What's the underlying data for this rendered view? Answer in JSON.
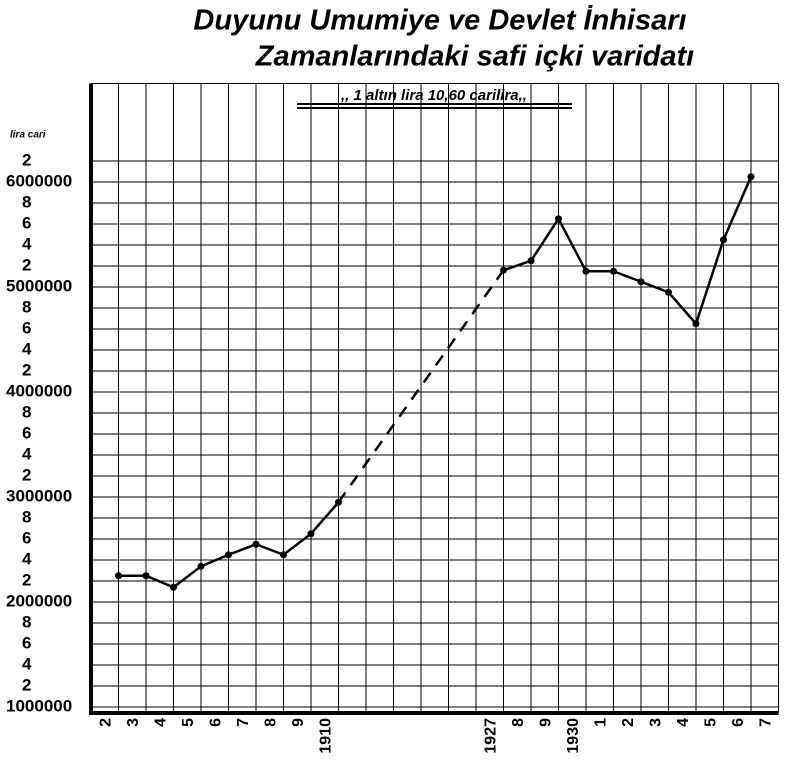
{
  "chart_data": {
    "type": "line",
    "title": [
      "Duyunu Umumiye ve Devlet İnhisarı",
      "Zamanlarındaki safi içki varidatı"
    ],
    "annotation": ",, 1 altın lira    10,60 carilira,,",
    "y_label": "lira cari",
    "categories": [
      "2",
      "3",
      "4",
      "5",
      "6",
      "7",
      "8",
      "9",
      "1910",
      null,
      null,
      null,
      null,
      null,
      "1927",
      "8",
      "9",
      "1930",
      "1",
      "2",
      "3",
      "4",
      "5",
      "6",
      "7"
    ],
    "values": [
      2250000,
      2250000,
      2140000,
      2340000,
      2450000,
      2550000,
      2450000,
      2650000,
      2950000,
      null,
      null,
      null,
      null,
      null,
      5160000,
      5250000,
      5650000,
      5150000,
      5150000,
      5050000,
      4950000,
      4650000,
      5450000,
      6050000,
      null
    ],
    "color": "#000000",
    "gaps": "dashed",
    "ylim": [
      1000000,
      6900000
    ],
    "yticks": [
      1000000,
      {
        "value": 1200000,
        "label": "2"
      },
      {
        "value": 1400000,
        "label": "4"
      },
      {
        "value": 1600000,
        "label": "6"
      },
      {
        "value": 1800000,
        "label": "8"
      },
      2000000,
      {
        "value": 2200000,
        "label": "2"
      },
      {
        "value": 2400000,
        "label": "4"
      },
      {
        "value": 2600000,
        "label": "6"
      },
      {
        "value": 2800000,
        "label": "8"
      },
      3000000,
      {
        "value": 3200000,
        "label": "2"
      },
      {
        "value": 3400000,
        "label": "4"
      },
      {
        "value": 3600000,
        "label": "6"
      },
      {
        "value": 3800000,
        "label": "8"
      },
      4000000,
      {
        "value": 4200000,
        "label": "2"
      },
      {
        "value": 4400000,
        "label": "4"
      },
      {
        "value": 4600000,
        "label": "6"
      },
      {
        "value": 4800000,
        "label": "8"
      },
      5000000,
      {
        "value": 5200000,
        "label": "2"
      },
      {
        "value": 5400000,
        "label": "4"
      },
      {
        "value": 5600000,
        "label": "6"
      },
      {
        "value": 5800000,
        "label": "8"
      },
      6000000,
      {
        "value": 6200000,
        "label": "2"
      }
    ],
    "grid": true
  }
}
